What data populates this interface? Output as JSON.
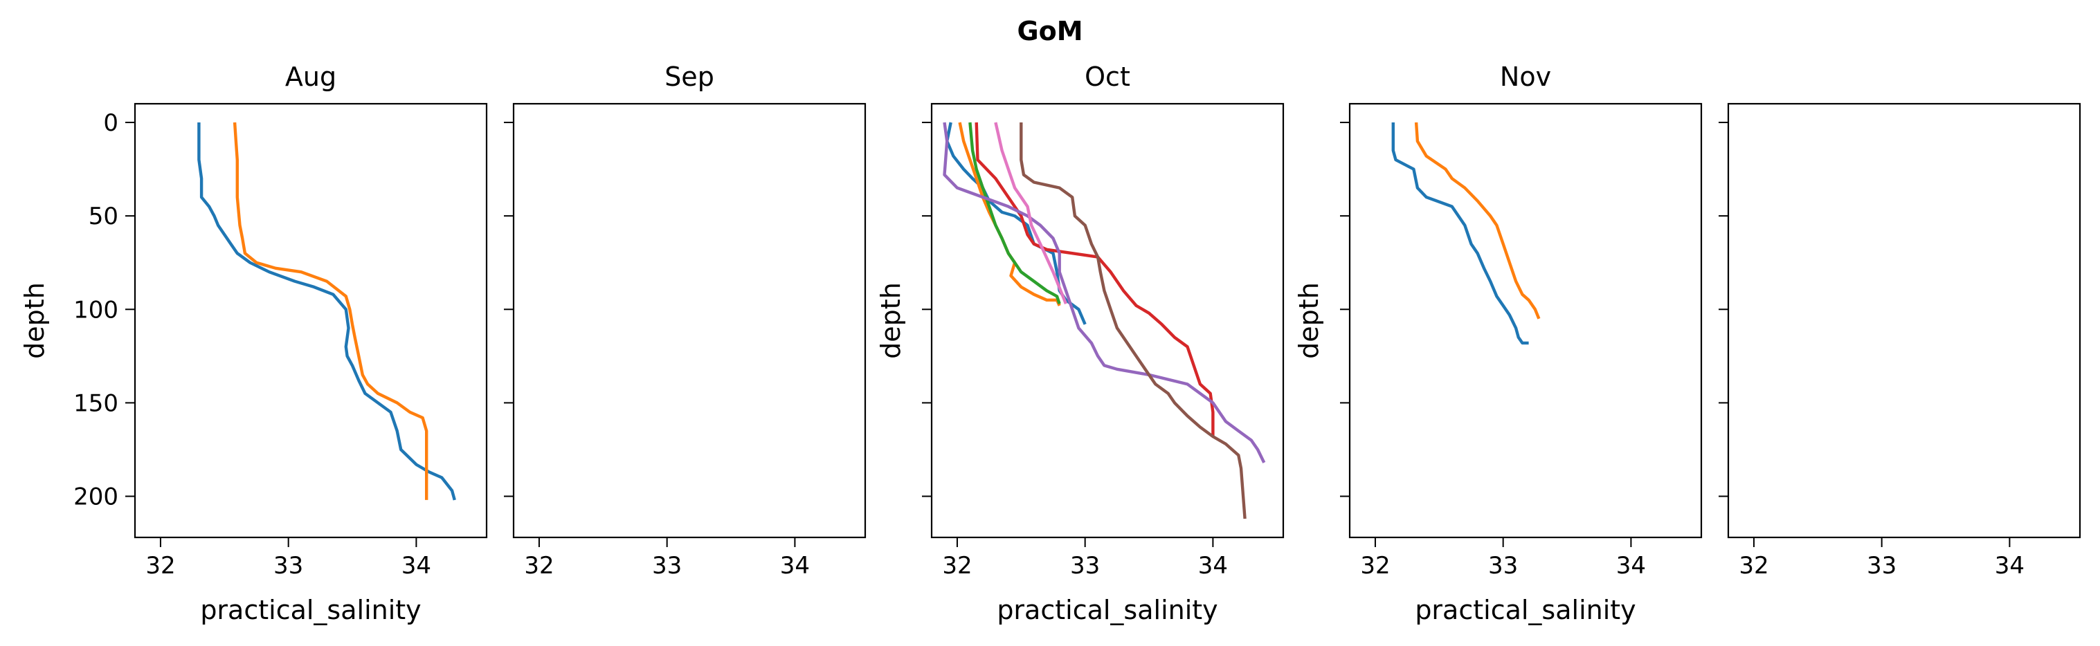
{
  "figure": {
    "suptitle": "GoM"
  },
  "colors": [
    "#1f77b4",
    "#ff7f0e",
    "#2ca02c",
    "#d62728",
    "#9467bd",
    "#8c564b",
    "#e377c2"
  ],
  "chart_data": [
    {
      "type": "line",
      "title": "Aug",
      "xlabel": "practical_salinity",
      "ylabel": "depth",
      "xlim": [
        31.8,
        34.55
      ],
      "ylim": [
        222,
        -10
      ],
      "yinverted": true,
      "xticks": [
        32,
        33,
        34
      ],
      "yticks": [
        0,
        50,
        100,
        150,
        200
      ],
      "show_y_ticklabels": true,
      "grid": false,
      "series": [
        {
          "x": [
            32.3,
            32.3,
            32.32,
            32.32,
            32.38,
            32.42,
            32.45,
            32.5,
            32.55,
            32.6,
            32.7,
            32.85,
            33.05,
            33.2,
            33.35,
            33.45,
            33.47,
            33.45,
            33.46,
            33.5,
            33.55,
            33.6,
            33.7,
            33.8,
            33.85,
            33.88,
            34.0,
            34.1,
            34.2,
            34.28,
            34.3
          ],
          "y": [
            0,
            20,
            30,
            40,
            45,
            50,
            55,
            60,
            65,
            70,
            75,
            80,
            85,
            88,
            92,
            100,
            110,
            120,
            125,
            130,
            138,
            145,
            150,
            155,
            165,
            175,
            183,
            187,
            190,
            197,
            202
          ]
        },
        {
          "x": [
            32.58,
            32.59,
            32.6,
            32.6,
            32.62,
            32.64,
            32.66,
            32.75,
            32.9,
            33.1,
            33.3,
            33.45,
            33.48,
            33.5,
            33.52,
            33.55,
            33.58,
            33.62,
            33.7,
            33.85,
            33.95,
            34.05,
            34.08,
            34.08,
            34.08
          ],
          "y": [
            0,
            10,
            20,
            40,
            55,
            62,
            70,
            75,
            78,
            80,
            85,
            93,
            100,
            108,
            115,
            125,
            135,
            140,
            145,
            150,
            155,
            158,
            165,
            185,
            202
          ]
        }
      ]
    },
    {
      "type": "line",
      "title": "Sep",
      "xlabel": "",
      "ylabel": "",
      "xlim": [
        31.8,
        34.55
      ],
      "ylim": [
        222,
        -10
      ],
      "yinverted": true,
      "xticks": [
        32,
        33,
        34
      ],
      "yticks": [
        0,
        50,
        100,
        150,
        200
      ],
      "show_y_ticklabels": false,
      "grid": false,
      "series": []
    },
    {
      "type": "line",
      "title": "Oct",
      "xlabel": "practical_salinity",
      "ylabel": "depth",
      "xlim": [
        31.8,
        34.55
      ],
      "ylim": [
        222,
        -10
      ],
      "yinverted": true,
      "xticks": [
        32,
        33,
        34
      ],
      "yticks": [
        0,
        50,
        100,
        150,
        200
      ],
      "show_y_ticklabels": false,
      "grid": false,
      "series": [
        {
          "x": [
            31.95,
            31.92,
            31.97,
            32.05,
            32.12,
            32.2,
            32.25,
            32.35,
            32.45,
            32.55,
            32.6,
            32.75,
            32.78,
            32.8,
            32.85,
            32.95,
            33.0
          ],
          "y": [
            0,
            10,
            18,
            25,
            30,
            35,
            42,
            48,
            50,
            55,
            65,
            70,
            80,
            90,
            95,
            100,
            108
          ]
        },
        {
          "x": [
            32.02,
            32.05,
            32.1,
            32.15,
            32.2,
            32.25,
            32.3,
            32.35,
            32.4,
            32.45,
            32.42,
            32.5,
            32.6,
            32.7,
            32.78,
            32.8
          ],
          "y": [
            0,
            10,
            20,
            30,
            40,
            48,
            55,
            62,
            70,
            75,
            82,
            88,
            92,
            95,
            95,
            98
          ]
        },
        {
          "x": [
            32.1,
            32.12,
            32.15,
            32.2,
            32.25,
            32.3,
            32.35,
            32.4,
            32.5,
            32.6,
            32.7,
            32.78,
            32.8
          ],
          "y": [
            0,
            15,
            25,
            35,
            45,
            55,
            62,
            70,
            80,
            85,
            90,
            93,
            97
          ]
        },
        {
          "x": [
            32.15,
            32.16,
            32.3,
            32.4,
            32.5,
            32.55,
            32.6,
            32.7,
            32.9,
            33.1,
            33.2,
            33.3,
            33.4,
            33.5,
            33.6,
            33.7,
            33.8,
            33.85,
            33.9,
            33.98,
            34.0,
            34.0
          ],
          "y": [
            0,
            20,
            30,
            40,
            50,
            60,
            65,
            68,
            70,
            72,
            80,
            90,
            98,
            102,
            108,
            115,
            120,
            130,
            140,
            145,
            155,
            168
          ]
        },
        {
          "x": [
            31.9,
            31.92,
            31.9,
            32.0,
            32.2,
            32.4,
            32.55,
            32.65,
            32.75,
            32.8,
            32.8,
            32.85,
            32.9,
            32.95,
            33.05,
            33.1,
            33.15,
            33.25,
            33.5,
            33.8,
            34.0,
            34.1,
            34.2,
            34.3,
            34.35,
            34.4
          ],
          "y": [
            0,
            10,
            28,
            35,
            40,
            45,
            50,
            55,
            62,
            70,
            80,
            90,
            100,
            110,
            118,
            125,
            130,
            132,
            135,
            140,
            150,
            160,
            165,
            170,
            175,
            182
          ]
        },
        {
          "x": [
            32.5,
            32.5,
            32.52,
            32.6,
            32.8,
            32.9,
            32.92,
            33.0,
            33.05,
            33.1,
            33.12,
            33.15,
            33.2,
            33.25,
            33.35,
            33.45,
            33.55,
            33.65,
            33.7,
            33.8,
            33.9,
            34.0,
            34.1,
            34.2,
            34.22,
            34.25
          ],
          "y": [
            0,
            20,
            28,
            32,
            35,
            40,
            50,
            55,
            65,
            72,
            80,
            90,
            100,
            110,
            120,
            130,
            140,
            145,
            150,
            157,
            163,
            168,
            172,
            178,
            185,
            212
          ]
        },
        {
          "x": [
            32.3,
            32.35,
            32.4,
            32.45,
            32.55,
            32.58,
            32.65,
            32.75,
            32.85
          ],
          "y": [
            0,
            15,
            25,
            35,
            45,
            55,
            65,
            80,
            97
          ]
        }
      ]
    },
    {
      "type": "line",
      "title": "Nov",
      "xlabel": "practical_salinity",
      "ylabel": "depth",
      "xlim": [
        31.8,
        34.55
      ],
      "ylim": [
        222,
        -10
      ],
      "yinverted": true,
      "xticks": [
        32,
        33,
        34
      ],
      "yticks": [
        0,
        50,
        100,
        150,
        200
      ],
      "show_y_ticklabels": false,
      "grid": false,
      "series": [
        {
          "x": [
            32.14,
            32.14,
            32.16,
            32.3,
            32.33,
            32.4,
            32.6,
            32.7,
            32.75,
            32.8,
            32.85,
            32.9,
            32.95,
            33.0,
            33.05,
            33.1,
            33.12,
            33.15,
            33.2
          ],
          "y": [
            0,
            15,
            20,
            25,
            35,
            40,
            45,
            55,
            65,
            70,
            78,
            85,
            93,
            98,
            103,
            110,
            115,
            118,
            118
          ]
        },
        {
          "x": [
            32.32,
            32.33,
            32.4,
            32.55,
            32.6,
            32.7,
            32.8,
            32.9,
            32.95,
            33.0,
            33.05,
            33.1,
            33.15,
            33.2,
            33.25,
            33.28
          ],
          "y": [
            0,
            10,
            18,
            25,
            30,
            35,
            42,
            50,
            55,
            65,
            75,
            85,
            92,
            95,
            100,
            105
          ]
        }
      ]
    },
    {
      "type": "line",
      "title": "",
      "xlabel": "",
      "ylabel": "",
      "xlim": [
        31.8,
        34.55
      ],
      "ylim": [
        222,
        -10
      ],
      "yinverted": true,
      "xticks": [
        32,
        33,
        34
      ],
      "yticks": [
        0,
        50,
        100,
        150,
        200
      ],
      "show_y_ticklabels": false,
      "grid": false,
      "series": []
    }
  ]
}
